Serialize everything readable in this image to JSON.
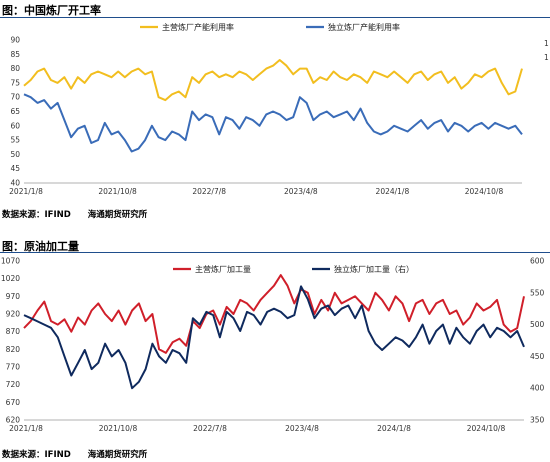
{
  "panel1": {
    "title": "图：中国炼厂开工率",
    "source": "数据来源：IFIND　　海通期货研究所"
  },
  "panel2": {
    "title": "图：原油加工量",
    "source": "数据来源：IFIND　　海通期货研究所"
  },
  "colors": {
    "main": "#f2be1f",
    "independent": "#3a6cb8",
    "main2": "#d01f2a",
    "independent2": "#0f2a5e",
    "rule": "#1f4e8c"
  },
  "chart_data": [
    {
      "type": "line",
      "title": "图：中国炼厂开工率",
      "xlabel": "",
      "ylabel": "",
      "ylim": [
        40,
        90
      ],
      "yticks": [
        "40",
        "45",
        "50",
        "55",
        "60",
        "65",
        "70",
        "75",
        "80",
        "85",
        "90"
      ],
      "right_tick_marks": [
        "1",
        "1"
      ],
      "xticks": [
        "2021/1/8",
        "2021/10/8",
        "2022/7/8",
        "2023/4/8",
        "2024/1/8",
        "2024/10/8"
      ],
      "legend_position": "top",
      "series": [
        {
          "name": "主营炼厂产能利用率",
          "color": "#f2be1f",
          "values": [
            74,
            76,
            79,
            80,
            76,
            75,
            77,
            73,
            77,
            75,
            78,
            79,
            78,
            77,
            79,
            77,
            79,
            80,
            78,
            79,
            70,
            69,
            71,
            72,
            70,
            77,
            75,
            78,
            79,
            77,
            78,
            77,
            79,
            78,
            76,
            78,
            80,
            81,
            83,
            81,
            78,
            80,
            80,
            75,
            77,
            76,
            79,
            77,
            76,
            78,
            77,
            75,
            79,
            78,
            77,
            79,
            77,
            75,
            78,
            79,
            76,
            78,
            79,
            75,
            77,
            73,
            75,
            78,
            77,
            79,
            80,
            75,
            71,
            72,
            80
          ]
        },
        {
          "name": "独立炼厂产能利用率",
          "color": "#3a6cb8",
          "values": [
            71,
            70,
            68,
            69,
            66,
            68,
            62,
            56,
            59,
            60,
            54,
            55,
            61,
            57,
            58,
            55,
            51,
            52,
            55,
            60,
            56,
            55,
            58,
            57,
            55,
            65,
            62,
            64,
            63,
            57,
            63,
            62,
            59,
            63,
            62,
            60,
            64,
            65,
            64,
            62,
            63,
            70,
            68,
            62,
            64,
            65,
            63,
            64,
            65,
            62,
            66,
            61,
            58,
            57,
            58,
            60,
            59,
            58,
            60,
            62,
            59,
            61,
            62,
            58,
            61,
            60,
            58,
            60,
            61,
            59,
            61,
            60,
            59,
            60,
            57
          ]
        }
      ]
    },
    {
      "type": "line",
      "title": "图：原油加工量",
      "xlabel": "",
      "ylabel": "",
      "ylim_left": [
        620,
        1070
      ],
      "ylim_right": [
        350,
        600
      ],
      "yticks_left": [
        "620",
        "670",
        "720",
        "770",
        "820",
        "870",
        "920",
        "970",
        "1020",
        "1070"
      ],
      "yticks_right": [
        "350",
        "400",
        "450",
        "500",
        "550",
        "600"
      ],
      "xticks": [
        "2021/1/8",
        "2021/10/8",
        "2022/7/8",
        "2023/4/8",
        "2024/1/8",
        "2024/10/8"
      ],
      "legend_position": "top",
      "series": [
        {
          "name": "主营炼厂加工量",
          "axis": "left",
          "color": "#d01f2a",
          "values": [
            880,
            900,
            930,
            955,
            900,
            890,
            905,
            870,
            910,
            890,
            930,
            950,
            920,
            900,
            930,
            890,
            930,
            950,
            900,
            920,
            820,
            810,
            840,
            850,
            830,
            900,
            880,
            920,
            930,
            890,
            940,
            920,
            960,
            950,
            930,
            960,
            980,
            1000,
            1030,
            1000,
            950,
            990,
            980,
            920,
            960,
            930,
            980,
            950,
            960,
            970,
            950,
            930,
            980,
            960,
            930,
            970,
            950,
            900,
            950,
            960,
            920,
            950,
            960,
            920,
            930,
            890,
            910,
            950,
            930,
            940,
            960,
            890,
            870,
            880,
            970
          ]
        },
        {
          "name": "独立炼厂加工量（右）",
          "axis": "right",
          "color": "#0f2a5e",
          "values": [
            515,
            510,
            505,
            500,
            495,
            480,
            450,
            420,
            440,
            460,
            430,
            440,
            470,
            450,
            460,
            440,
            400,
            410,
            430,
            470,
            450,
            440,
            460,
            455,
            440,
            510,
            500,
            520,
            515,
            480,
            520,
            510,
            490,
            520,
            515,
            500,
            520,
            525,
            520,
            510,
            515,
            560,
            540,
            510,
            525,
            530,
            515,
            525,
            530,
            510,
            530,
            490,
            470,
            460,
            470,
            480,
            475,
            465,
            480,
            500,
            470,
            490,
            500,
            470,
            495,
            480,
            470,
            490,
            500,
            480,
            495,
            490,
            480,
            490,
            465
          ]
        }
      ]
    }
  ]
}
